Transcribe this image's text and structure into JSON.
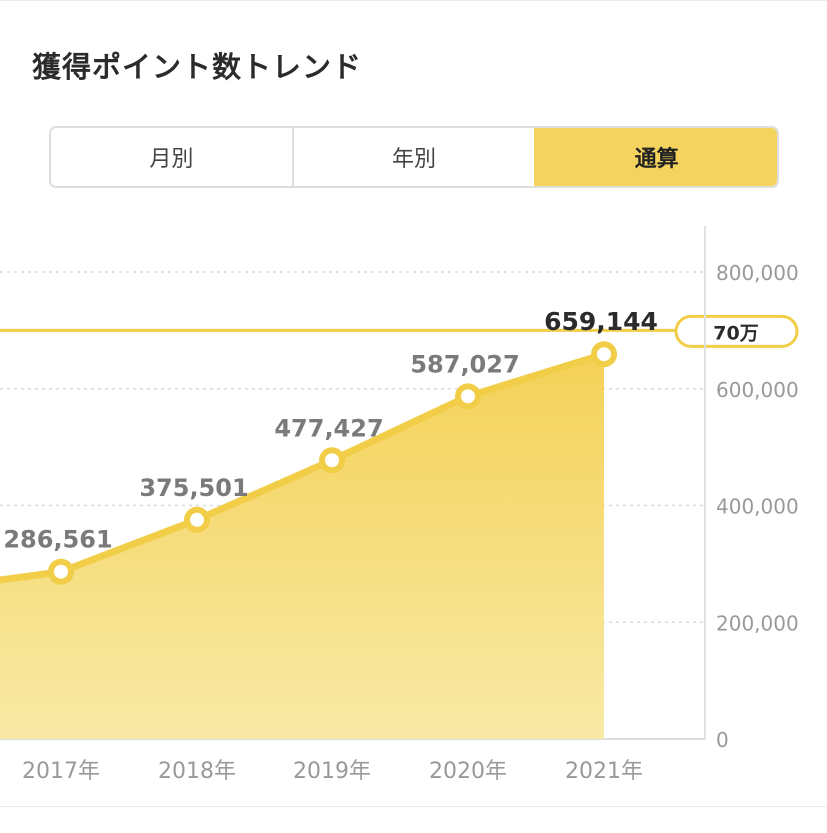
{
  "header": {
    "title": "獲得ポイント数トレンド"
  },
  "tabs": [
    {
      "label": "月別",
      "active": false
    },
    {
      "label": "年別",
      "active": false
    },
    {
      "label": "通算",
      "active": true
    }
  ],
  "colors": {
    "accent": "#f4d45f",
    "line": "#f2cd48",
    "text": "#2b2b2b",
    "muted": "#999999"
  },
  "chart_data": {
    "type": "area",
    "categories": [
      "2017年",
      "2018年",
      "2019年",
      "2020年",
      "2021年"
    ],
    "series": [
      {
        "values": [
          286561,
          375501,
          477427,
          587027,
          659144
        ]
      }
    ],
    "data_labels": [
      "286,561",
      "375,501",
      "477,427",
      "587,027",
      "659,144"
    ],
    "highlight_index": 4,
    "y_ticks": [
      0,
      200000,
      400000,
      600000,
      800000
    ],
    "y_tick_labels": [
      "0",
      "200,000",
      "400,000",
      "600,000",
      "800,000"
    ],
    "ylim": [
      0,
      800000
    ],
    "y_axis_position": "right",
    "grid": true,
    "reference_line": {
      "value": 700000,
      "label": "70万"
    },
    "previous_value": 255000
  }
}
